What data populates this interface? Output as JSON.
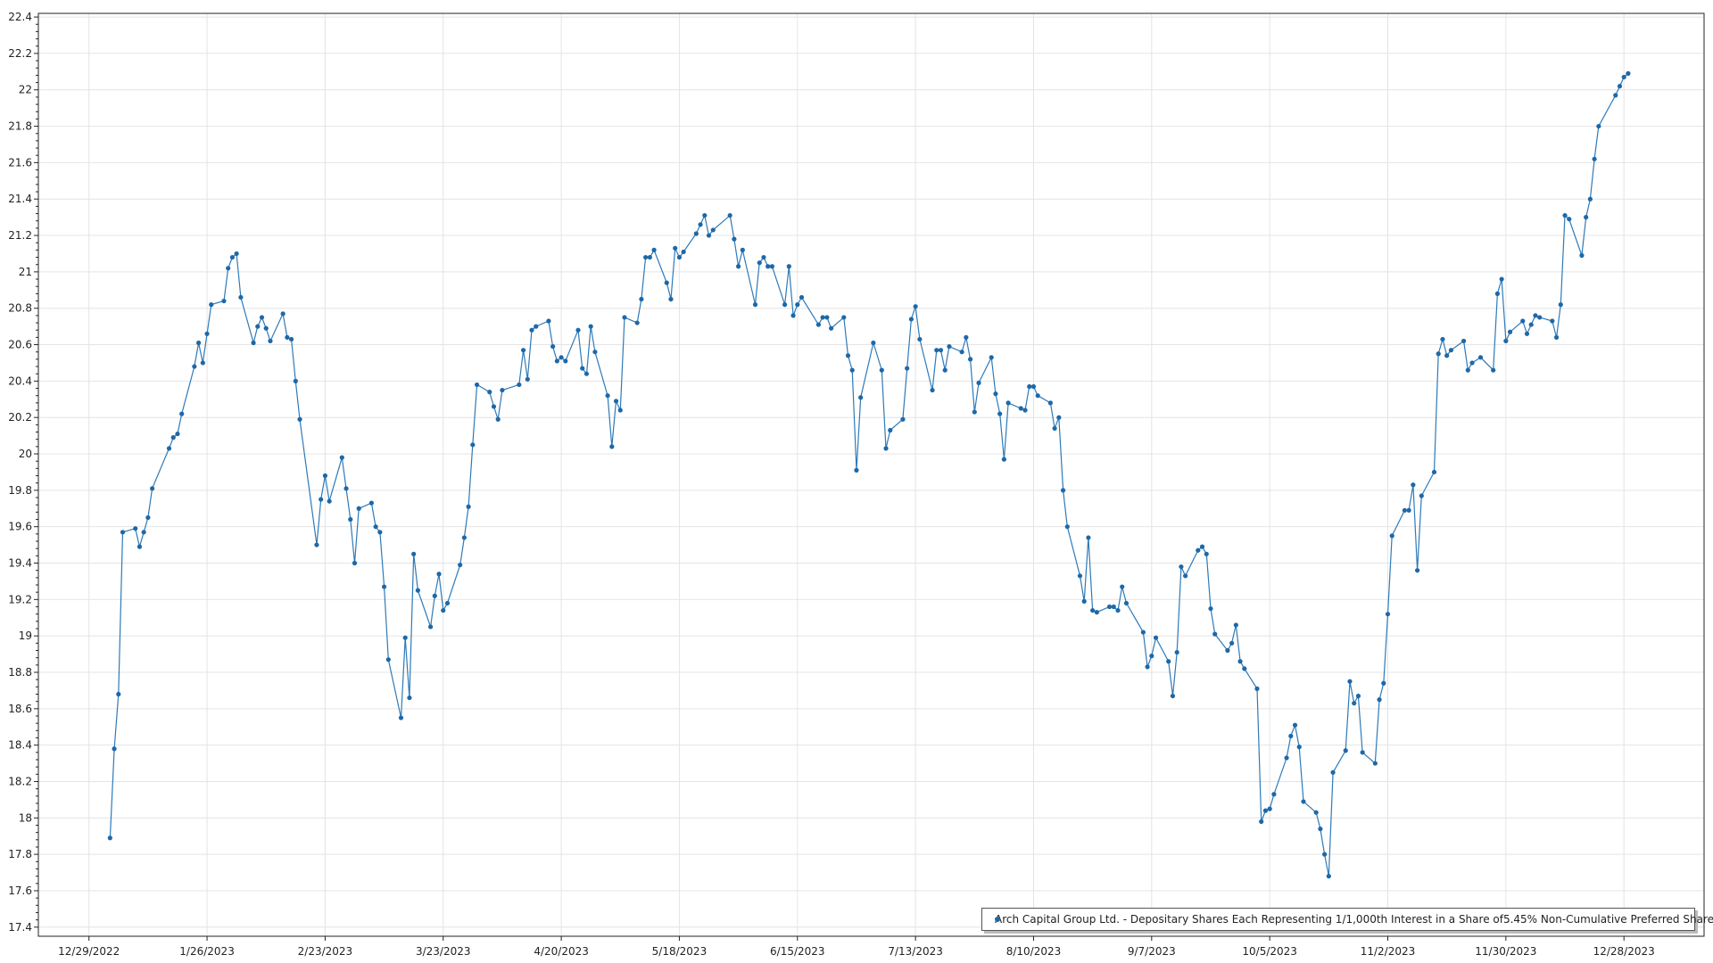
{
  "chart_data": {
    "type": "line",
    "title": "",
    "xlabel": "",
    "ylabel": "",
    "xlim": [
      "12/17/2022",
      "1/16/2024"
    ],
    "ylim": [
      17.35,
      22.42
    ],
    "grid": true,
    "legend_placement": "bottom-right",
    "colors": {
      "series": "#2e7ab8",
      "marker": "#1d68a8"
    },
    "x_ticks": [
      "12/29/2022",
      "1/26/2023",
      "2/23/2023",
      "3/23/2023",
      "4/20/2023",
      "5/18/2023",
      "6/15/2023",
      "7/13/2023",
      "8/10/2023",
      "9/7/2023",
      "10/5/2023",
      "11/2/2023",
      "11/30/2023",
      "12/28/2023"
    ],
    "y_ticks": [
      "17.4",
      "17.6",
      "17.8",
      "18",
      "18.2",
      "18.4",
      "18.6",
      "18.8",
      "19",
      "19.2",
      "19.4",
      "19.6",
      "19.8",
      "20",
      "20.2",
      "20.4",
      "20.6",
      "20.8",
      "21",
      "21.2",
      "21.4",
      "21.6",
      "21.8",
      "22",
      "22.2",
      "22.4"
    ],
    "series": [
      {
        "name": "Arch Capital Group Ltd. - Depositary Shares Each Representing 1/1,000th Interest in a Share of5.45% Non-Cumulative Preferred Shares, Series F",
        "points": [
          [
            "1/3/2023",
            17.89
          ],
          [
            "1/4/2023",
            18.38
          ],
          [
            "1/5/2023",
            18.68
          ],
          [
            "1/6/2023",
            19.57
          ],
          [
            "1/9/2023",
            19.59
          ],
          [
            "1/10/2023",
            19.49
          ],
          [
            "1/11/2023",
            19.57
          ],
          [
            "1/12/2023",
            19.65
          ],
          [
            "1/13/2023",
            19.81
          ],
          [
            "1/17/2023",
            20.03
          ],
          [
            "1/18/2023",
            20.09
          ],
          [
            "1/19/2023",
            20.11
          ],
          [
            "1/20/2023",
            20.22
          ],
          [
            "1/23/2023",
            20.48
          ],
          [
            "1/24/2023",
            20.61
          ],
          [
            "1/25/2023",
            20.5
          ],
          [
            "1/26/2023",
            20.66
          ],
          [
            "1/27/2023",
            20.82
          ],
          [
            "1/30/2023",
            20.84
          ],
          [
            "1/31/2023",
            21.02
          ],
          [
            "2/1/2023",
            21.08
          ],
          [
            "2/2/2023",
            21.1
          ],
          [
            "2/3/2023",
            20.86
          ],
          [
            "2/6/2023",
            20.61
          ],
          [
            "2/7/2023",
            20.7
          ],
          [
            "2/8/2023",
            20.75
          ],
          [
            "2/9/2023",
            20.69
          ],
          [
            "2/10/2023",
            20.62
          ],
          [
            "2/13/2023",
            20.77
          ],
          [
            "2/14/2023",
            20.64
          ],
          [
            "2/15/2023",
            20.63
          ],
          [
            "2/16/2023",
            20.4
          ],
          [
            "2/17/2023",
            20.19
          ],
          [
            "2/21/2023",
            19.5
          ],
          [
            "2/22/2023",
            19.75
          ],
          [
            "2/23/2023",
            19.88
          ],
          [
            "2/24/2023",
            19.74
          ],
          [
            "2/27/2023",
            19.98
          ],
          [
            "2/28/2023",
            19.81
          ],
          [
            "3/1/2023",
            19.64
          ],
          [
            "3/2/2023",
            19.4
          ],
          [
            "3/3/2023",
            19.7
          ],
          [
            "3/6/2023",
            19.73
          ],
          [
            "3/7/2023",
            19.6
          ],
          [
            "3/8/2023",
            19.57
          ],
          [
            "3/9/2023",
            19.27
          ],
          [
            "3/10/2023",
            18.87
          ],
          [
            "3/13/2023",
            18.55
          ],
          [
            "3/14/2023",
            18.99
          ],
          [
            "3/15/2023",
            18.66
          ],
          [
            "3/16/2023",
            19.45
          ],
          [
            "3/17/2023",
            19.25
          ],
          [
            "3/20/2023",
            19.05
          ],
          [
            "3/21/2023",
            19.22
          ],
          [
            "3/22/2023",
            19.34
          ],
          [
            "3/23/2023",
            19.14
          ],
          [
            "3/24/2023",
            19.18
          ],
          [
            "3/27/2023",
            19.39
          ],
          [
            "3/28/2023",
            19.54
          ],
          [
            "3/29/2023",
            19.71
          ],
          [
            "3/30/2023",
            20.05
          ],
          [
            "3/31/2023",
            20.38
          ],
          [
            "4/3/2023",
            20.34
          ],
          [
            "4/4/2023",
            20.26
          ],
          [
            "4/5/2023",
            20.19
          ],
          [
            "4/6/2023",
            20.35
          ],
          [
            "4/10/2023",
            20.38
          ],
          [
            "4/11/2023",
            20.57
          ],
          [
            "4/12/2023",
            20.41
          ],
          [
            "4/13/2023",
            20.68
          ],
          [
            "4/14/2023",
            20.7
          ],
          [
            "4/17/2023",
            20.73
          ],
          [
            "4/18/2023",
            20.59
          ],
          [
            "4/19/2023",
            20.51
          ],
          [
            "4/20/2023",
            20.53
          ],
          [
            "4/21/2023",
            20.51
          ],
          [
            "4/24/2023",
            20.68
          ],
          [
            "4/25/2023",
            20.47
          ],
          [
            "4/26/2023",
            20.44
          ],
          [
            "4/27/2023",
            20.7
          ],
          [
            "4/28/2023",
            20.56
          ],
          [
            "5/1/2023",
            20.32
          ],
          [
            "5/2/2023",
            20.04
          ],
          [
            "5/3/2023",
            20.29
          ],
          [
            "5/4/2023",
            20.24
          ],
          [
            "5/5/2023",
            20.75
          ],
          [
            "5/8/2023",
            20.72
          ],
          [
            "5/9/2023",
            20.85
          ],
          [
            "5/10/2023",
            21.08
          ],
          [
            "5/11/2023",
            21.08
          ],
          [
            "5/12/2023",
            21.12
          ],
          [
            "5/15/2023",
            20.94
          ],
          [
            "5/16/2023",
            20.85
          ],
          [
            "5/17/2023",
            21.13
          ],
          [
            "5/18/2023",
            21.08
          ],
          [
            "5/19/2023",
            21.11
          ],
          [
            "5/22/2023",
            21.21
          ],
          [
            "5/23/2023",
            21.26
          ],
          [
            "5/24/2023",
            21.31
          ],
          [
            "5/25/2023",
            21.2
          ],
          [
            "5/26/2023",
            21.23
          ],
          [
            "5/30/2023",
            21.31
          ],
          [
            "5/31/2023",
            21.18
          ],
          [
            "6/1/2023",
            21.03
          ],
          [
            "6/2/2023",
            21.12
          ],
          [
            "6/5/2023",
            20.82
          ],
          [
            "6/6/2023",
            21.05
          ],
          [
            "6/7/2023",
            21.08
          ],
          [
            "6/8/2023",
            21.03
          ],
          [
            "6/9/2023",
            21.03
          ],
          [
            "6/12/2023",
            20.82
          ],
          [
            "6/13/2023",
            21.03
          ],
          [
            "6/14/2023",
            20.76
          ],
          [
            "6/15/2023",
            20.82
          ],
          [
            "6/16/2023",
            20.86
          ],
          [
            "6/20/2023",
            20.71
          ],
          [
            "6/21/2023",
            20.75
          ],
          [
            "6/22/2023",
            20.75
          ],
          [
            "6/23/2023",
            20.69
          ],
          [
            "6/26/2023",
            20.75
          ],
          [
            "6/27/2023",
            20.54
          ],
          [
            "6/28/2023",
            20.46
          ],
          [
            "6/29/2023",
            19.91
          ],
          [
            "6/30/2023",
            20.31
          ],
          [
            "7/3/2023",
            20.61
          ],
          [
            "7/5/2023",
            20.46
          ],
          [
            "7/6/2023",
            20.03
          ],
          [
            "7/7/2023",
            20.13
          ],
          [
            "7/10/2023",
            20.19
          ],
          [
            "7/11/2023",
            20.47
          ],
          [
            "7/12/2023",
            20.74
          ],
          [
            "7/13/2023",
            20.81
          ],
          [
            "7/14/2023",
            20.63
          ],
          [
            "7/17/2023",
            20.35
          ],
          [
            "7/18/2023",
            20.57
          ],
          [
            "7/19/2023",
            20.57
          ],
          [
            "7/20/2023",
            20.46
          ],
          [
            "7/21/2023",
            20.59
          ],
          [
            "7/24/2023",
            20.56
          ],
          [
            "7/25/2023",
            20.64
          ],
          [
            "7/26/2023",
            20.52
          ],
          [
            "7/27/2023",
            20.23
          ],
          [
            "7/28/2023",
            20.39
          ],
          [
            "7/31/2023",
            20.53
          ],
          [
            "8/1/2023",
            20.33
          ],
          [
            "8/2/2023",
            20.22
          ],
          [
            "8/3/2023",
            19.97
          ],
          [
            "8/4/2023",
            20.28
          ],
          [
            "8/7/2023",
            20.25
          ],
          [
            "8/8/2023",
            20.24
          ],
          [
            "8/9/2023",
            20.37
          ],
          [
            "8/10/2023",
            20.37
          ],
          [
            "8/11/2023",
            20.32
          ],
          [
            "8/14/2023",
            20.28
          ],
          [
            "8/15/2023",
            20.14
          ],
          [
            "8/16/2023",
            20.2
          ],
          [
            "8/17/2023",
            19.8
          ],
          [
            "8/18/2023",
            19.6
          ],
          [
            "8/21/2023",
            19.33
          ],
          [
            "8/22/2023",
            19.19
          ],
          [
            "8/23/2023",
            19.54
          ],
          [
            "8/24/2023",
            19.14
          ],
          [
            "8/25/2023",
            19.13
          ],
          [
            "8/28/2023",
            19.16
          ],
          [
            "8/29/2023",
            19.16
          ],
          [
            "8/30/2023",
            19.14
          ],
          [
            "8/31/2023",
            19.27
          ],
          [
            "9/1/2023",
            19.18
          ],
          [
            "9/5/2023",
            19.02
          ],
          [
            "9/6/2023",
            18.83
          ],
          [
            "9/7/2023",
            18.89
          ],
          [
            "9/8/2023",
            18.99
          ],
          [
            "9/11/2023",
            18.86
          ],
          [
            "9/12/2023",
            18.67
          ],
          [
            "9/13/2023",
            18.91
          ],
          [
            "9/14/2023",
            19.38
          ],
          [
            "9/15/2023",
            19.33
          ],
          [
            "9/18/2023",
            19.47
          ],
          [
            "9/19/2023",
            19.49
          ],
          [
            "9/20/2023",
            19.45
          ],
          [
            "9/21/2023",
            19.15
          ],
          [
            "9/22/2023",
            19.01
          ],
          [
            "9/25/2023",
            18.92
          ],
          [
            "9/26/2023",
            18.96
          ],
          [
            "9/27/2023",
            19.06
          ],
          [
            "9/28/2023",
            18.86
          ],
          [
            "9/29/2023",
            18.82
          ],
          [
            "10/2/2023",
            18.71
          ],
          [
            "10/3/2023",
            17.98
          ],
          [
            "10/4/2023",
            18.04
          ],
          [
            "10/5/2023",
            18.05
          ],
          [
            "10/6/2023",
            18.13
          ],
          [
            "10/9/2023",
            18.33
          ],
          [
            "10/10/2023",
            18.45
          ],
          [
            "10/11/2023",
            18.51
          ],
          [
            "10/12/2023",
            18.39
          ],
          [
            "10/13/2023",
            18.09
          ],
          [
            "10/16/2023",
            18.03
          ],
          [
            "10/17/2023",
            17.94
          ],
          [
            "10/18/2023",
            17.8
          ],
          [
            "10/19/2023",
            17.68
          ],
          [
            "10/20/2023",
            18.25
          ],
          [
            "10/23/2023",
            18.37
          ],
          [
            "10/24/2023",
            18.75
          ],
          [
            "10/25/2023",
            18.63
          ],
          [
            "10/26/2023",
            18.67
          ],
          [
            "10/27/2023",
            18.36
          ],
          [
            "10/30/2023",
            18.3
          ],
          [
            "10/31/2023",
            18.65
          ],
          [
            "11/1/2023",
            18.74
          ],
          [
            "11/2/2023",
            19.12
          ],
          [
            "11/3/2023",
            19.55
          ],
          [
            "11/6/2023",
            19.69
          ],
          [
            "11/7/2023",
            19.69
          ],
          [
            "11/8/2023",
            19.83
          ],
          [
            "11/9/2023",
            19.36
          ],
          [
            "11/10/2023",
            19.77
          ],
          [
            "11/13/2023",
            19.9
          ],
          [
            "11/14/2023",
            20.55
          ],
          [
            "11/15/2023",
            20.63
          ],
          [
            "11/16/2023",
            20.54
          ],
          [
            "11/17/2023",
            20.57
          ],
          [
            "11/20/2023",
            20.62
          ],
          [
            "11/21/2023",
            20.46
          ],
          [
            "11/22/2023",
            20.5
          ],
          [
            "11/24/2023",
            20.53
          ],
          [
            "11/27/2023",
            20.46
          ],
          [
            "11/28/2023",
            20.88
          ],
          [
            "11/29/2023",
            20.96
          ],
          [
            "11/30/2023",
            20.62
          ],
          [
            "12/1/2023",
            20.67
          ],
          [
            "12/4/2023",
            20.73
          ],
          [
            "12/5/2023",
            20.66
          ],
          [
            "12/6/2023",
            20.71
          ],
          [
            "12/7/2023",
            20.76
          ],
          [
            "12/8/2023",
            20.75
          ],
          [
            "12/11/2023",
            20.73
          ],
          [
            "12/12/2023",
            20.64
          ],
          [
            "12/13/2023",
            20.82
          ],
          [
            "12/14/2023",
            21.31
          ],
          [
            "12/15/2023",
            21.29
          ],
          [
            "12/18/2023",
            21.09
          ],
          [
            "12/19/2023",
            21.3
          ],
          [
            "12/20/2023",
            21.4
          ],
          [
            "12/21/2023",
            21.62
          ],
          [
            "12/22/2023",
            21.8
          ],
          [
            "12/26/2023",
            21.97
          ],
          [
            "12/27/2023",
            22.02
          ],
          [
            "12/28/2023",
            22.07
          ],
          [
            "12/29/2023",
            22.09
          ]
        ]
      }
    ]
  }
}
